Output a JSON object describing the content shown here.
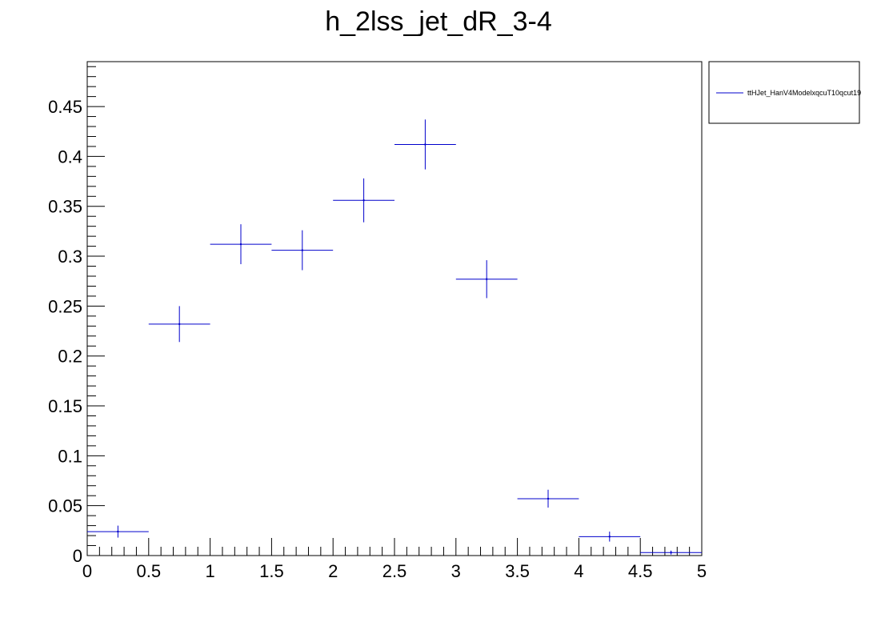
{
  "chart_data": {
    "type": "scatter",
    "title": "h_2lss_jet_dR_3-4",
    "xlabel": "",
    "ylabel": "",
    "xlim": [
      0,
      5
    ],
    "ylim": [
      0,
      0.495
    ],
    "grid": false,
    "legend_placement": "top-right-outside",
    "x_ticks": [
      {
        "value": 0,
        "label": "0"
      },
      {
        "value": 0.5,
        "label": "0.5"
      },
      {
        "value": 1,
        "label": "1"
      },
      {
        "value": 1.5,
        "label": "1.5"
      },
      {
        "value": 2,
        "label": "2"
      },
      {
        "value": 2.5,
        "label": "2.5"
      },
      {
        "value": 3,
        "label": "3"
      },
      {
        "value": 3.5,
        "label": "3.5"
      },
      {
        "value": 4,
        "label": "4"
      },
      {
        "value": 4.5,
        "label": "4.5"
      },
      {
        "value": 5,
        "label": "5"
      }
    ],
    "y_ticks": [
      {
        "value": 0,
        "label": "0"
      },
      {
        "value": 0.05,
        "label": "0.05"
      },
      {
        "value": 0.1,
        "label": "0.1"
      },
      {
        "value": 0.15,
        "label": "0.15"
      },
      {
        "value": 0.2,
        "label": "0.2"
      },
      {
        "value": 0.25,
        "label": "0.25"
      },
      {
        "value": 0.3,
        "label": "0.3"
      },
      {
        "value": 0.35,
        "label": "0.35"
      },
      {
        "value": 0.4,
        "label": "0.4"
      },
      {
        "value": 0.45,
        "label": "0.45"
      }
    ],
    "series": [
      {
        "name": "ttHJet_HanV4ModelxqcuT10qcut19",
        "color": "#0000cc",
        "points": [
          {
            "x_low": 0.0,
            "x_high": 0.5,
            "y": 0.024,
            "err": 0.006
          },
          {
            "x_low": 0.5,
            "x_high": 1.0,
            "y": 0.232,
            "err": 0.018
          },
          {
            "x_low": 1.0,
            "x_high": 1.5,
            "y": 0.312,
            "err": 0.02
          },
          {
            "x_low": 1.5,
            "x_high": 2.0,
            "y": 0.306,
            "err": 0.02
          },
          {
            "x_low": 2.0,
            "x_high": 2.5,
            "y": 0.356,
            "err": 0.022
          },
          {
            "x_low": 2.5,
            "x_high": 3.0,
            "y": 0.412,
            "err": 0.025
          },
          {
            "x_low": 3.0,
            "x_high": 3.5,
            "y": 0.277,
            "err": 0.019
          },
          {
            "x_low": 3.5,
            "x_high": 4.0,
            "y": 0.057,
            "err": 0.009
          },
          {
            "x_low": 4.0,
            "x_high": 4.5,
            "y": 0.019,
            "err": 0.005
          },
          {
            "x_low": 4.5,
            "x_high": 5.0,
            "y": 0.003,
            "err": 0.002
          }
        ]
      }
    ]
  }
}
